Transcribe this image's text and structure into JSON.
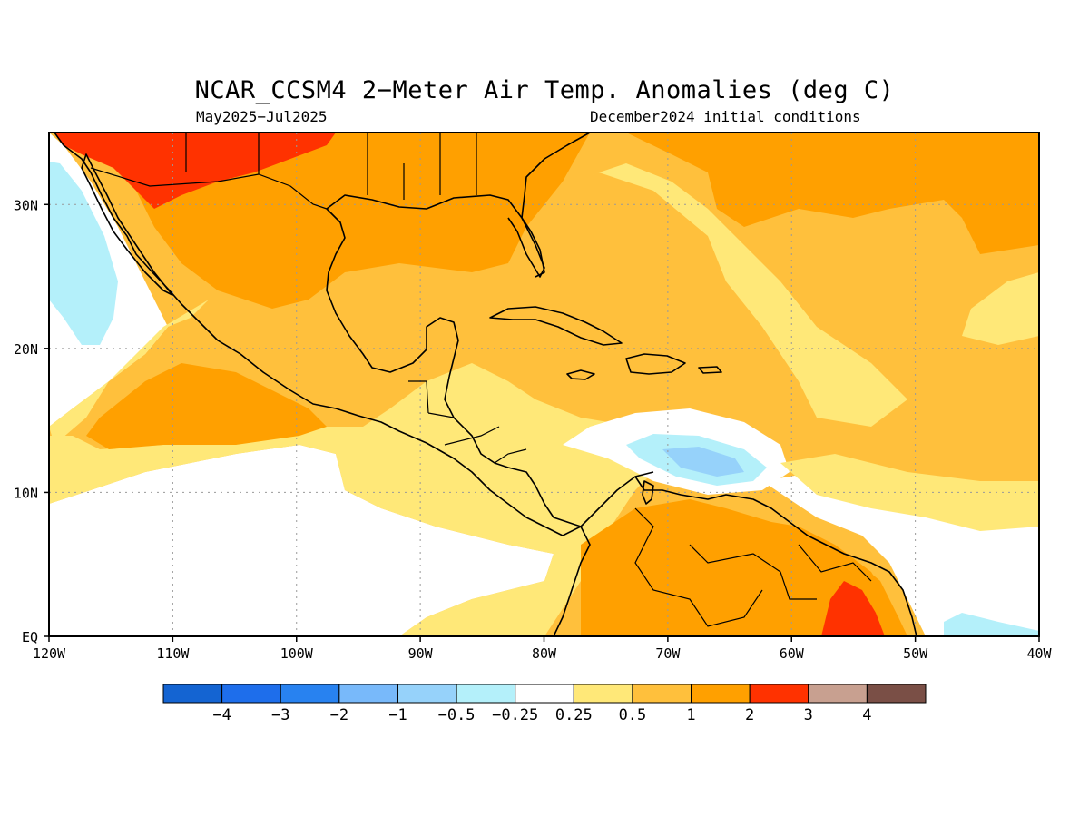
{
  "title": "NCAR_CCSM4 2−Meter Air Temp. Anomalies (deg C)",
  "period": "May2025−Jul2025",
  "initial_conditions": "December2024 initial conditions",
  "map": {
    "lon_range": [
      -120,
      -40
    ],
    "lat_range": [
      0,
      35
    ],
    "x_ticks": [
      {
        "lon": -120,
        "label": "120W"
      },
      {
        "lon": -110,
        "label": "110W"
      },
      {
        "lon": -100,
        "label": "100W"
      },
      {
        "lon": -90,
        "label": "90W"
      },
      {
        "lon": -80,
        "label": "80W"
      },
      {
        "lon": -70,
        "label": "70W"
      },
      {
        "lon": -60,
        "label": "60W"
      },
      {
        "lon": -50,
        "label": "50W"
      },
      {
        "lon": -40,
        "label": "40W"
      }
    ],
    "y_ticks": [
      {
        "lat": 0,
        "label": "EQ"
      },
      {
        "lat": 10,
        "label": "10N"
      },
      {
        "lat": 20,
        "label": "20N"
      },
      {
        "lat": 30,
        "label": "30N"
      }
    ],
    "grid": "dotted"
  },
  "colorbar": {
    "colors": [
      "#1464d2",
      "#1e6eeb",
      "#2882f0",
      "#78b9fa",
      "#96d2fa",
      "#b4f0fa",
      "#ffffff",
      "#ffe878",
      "#ffc03c",
      "#ffa000",
      "#ff3200",
      "#c8a090",
      "#7a4f46"
    ],
    "labels": [
      "−4",
      "−3",
      "−2",
      "−1",
      "−0.5",
      "−0.25",
      "0.25",
      "0.5",
      "1",
      "2",
      "3",
      "4"
    ]
  }
}
